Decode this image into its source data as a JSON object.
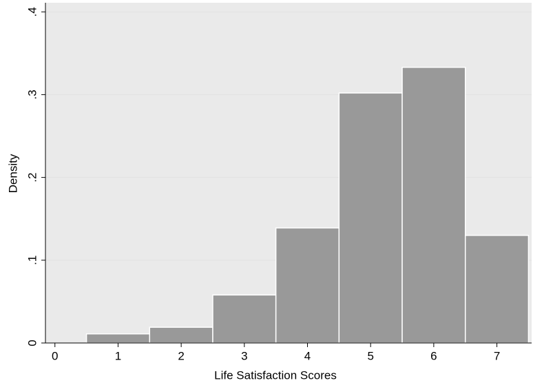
{
  "chart_data": {
    "type": "histogram",
    "xlabel": "Life Satisfaction Scores",
    "ylabel": "Density",
    "bins": [
      0.5,
      1.5,
      2.5,
      3.5,
      4.5,
      5.5,
      6.5,
      7.5
    ],
    "values": [
      0.011,
      0.019,
      0.058,
      0.139,
      0.302,
      0.333,
      0.13
    ],
    "color": "#999999",
    "xlim": [
      -0.15,
      7.55
    ],
    "xticks": [
      0,
      1,
      2,
      3,
      4,
      5,
      6,
      7
    ],
    "ylim": [
      0,
      0.411
    ],
    "yticks": [
      {
        "value": 0,
        "label": "0"
      },
      {
        "value": 0.1,
        "label": ".1"
      },
      {
        "value": 0.2,
        "label": ".2"
      },
      {
        "value": 0.3,
        "label": ".3"
      },
      {
        "value": 0.4,
        "label": ".4"
      }
    ],
    "grid": true
  }
}
